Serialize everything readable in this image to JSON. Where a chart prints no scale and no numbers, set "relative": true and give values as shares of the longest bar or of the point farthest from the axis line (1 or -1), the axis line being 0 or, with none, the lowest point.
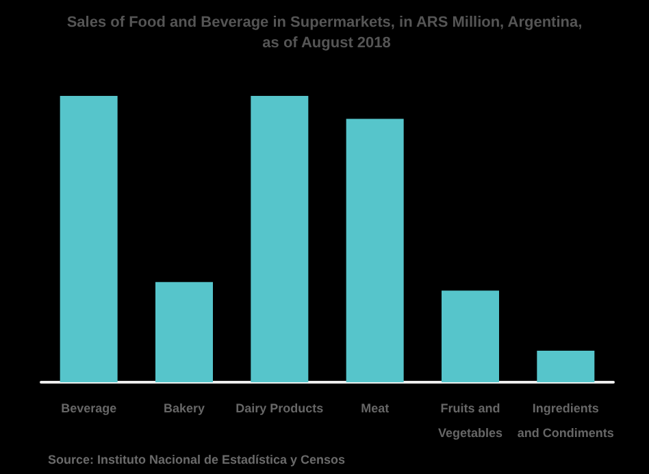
{
  "chart_data": {
    "type": "bar",
    "title": "Sales of Food and Beverage in Supermarkets, in ARS Million, Argentina, as of August 2018",
    "categories": [
      "Beverage",
      "Bakery",
      "Dairy Products",
      "Meat",
      "Fruits and\nVegetables",
      "Ingredients\nand Condiments"
    ],
    "values": [
      1,
      0.35,
      1,
      0.92,
      0.32,
      0.11
    ],
    "color": "#56c5cb",
    "relative": true,
    "annotations": [
      "Source: Instituto Nacional de Estadística y Censos"
    ]
  }
}
